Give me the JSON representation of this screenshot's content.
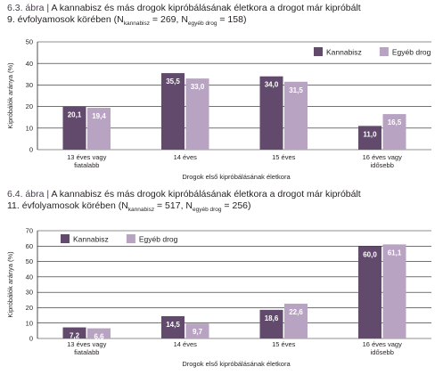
{
  "panels": [
    {
      "fig_label": "6.3. ábra",
      "separator": "|",
      "title_line1": "A kannabisz és más drogok kipróbálásának életkora a drogot már kipróbált",
      "title_line2_pre": "9. évfolyamosok körében (N",
      "sub1": "kannabisz",
      "mid1": " = 269, N",
      "sub2": "egyéb drog",
      "mid2": " = 158)",
      "legend_position": "top-right"
    },
    {
      "fig_label": "6.4. ábra",
      "separator": "|",
      "title_line1": "A kannabisz és más drogok kipróbálásának életkora a drogot már kipróbált",
      "title_line2_pre": "11. évfolyamosok körében (N",
      "sub1": "kannabisz",
      "mid1": " = 517, N",
      "sub2": "egyéb drog",
      "mid2": " = 256)",
      "legend_position": "top-left"
    }
  ],
  "colors": {
    "kannabisz": "#614a6b",
    "egyeb": "#b9a3c3",
    "grid": "#231f20"
  },
  "chart_data": [
    {
      "type": "bar",
      "categories": [
        [
          "13 éves vagy",
          "fiatalabb"
        ],
        [
          "14 éves"
        ],
        [
          "15 éves"
        ],
        [
          "16 éves vagy",
          "idősebb"
        ]
      ],
      "series": [
        {
          "name": "Kannabisz",
          "values": [
            20.1,
            35.5,
            34.0,
            11.0
          ],
          "labels": [
            "20,1",
            "35,5",
            "34,0",
            "11,0"
          ]
        },
        {
          "name": "Egyéb drog",
          "values": [
            19.4,
            33.0,
            31.5,
            16.5
          ],
          "labels": [
            "19,4",
            "33,0",
            "31,5",
            "16,5"
          ]
        }
      ],
      "ylabel": "Kipróbálók aránya (%)",
      "xlabel": "Drogok első kipróbálásának életkora",
      "ylim": [
        0,
        50
      ],
      "yticks": [
        0,
        10,
        20,
        30,
        40,
        50
      ],
      "grid": true,
      "legend": "top-right"
    },
    {
      "type": "bar",
      "categories": [
        [
          "13 éves vagy",
          "fiatalabb"
        ],
        [
          "14 éves"
        ],
        [
          "15 éves"
        ],
        [
          "16 éves vagy",
          "idősebb"
        ]
      ],
      "series": [
        {
          "name": "Kannabisz",
          "values": [
            7.2,
            14.5,
            18.6,
            60.0
          ],
          "labels": [
            "7,2",
            "14,5",
            "18,6",
            "60,0"
          ]
        },
        {
          "name": "Egyéb drog",
          "values": [
            6.6,
            9.7,
            22.6,
            61.1
          ],
          "labels": [
            "6,6",
            "9,7",
            "22,6",
            "61,1"
          ]
        }
      ],
      "ylabel": "Kipróbálók aránya (%)",
      "xlabel": "Drogok első kipróbálásának életkora",
      "ylim": [
        0,
        70
      ],
      "yticks": [
        0,
        10,
        20,
        30,
        40,
        50,
        60,
        70
      ],
      "grid": true,
      "legend": "top-left"
    }
  ]
}
